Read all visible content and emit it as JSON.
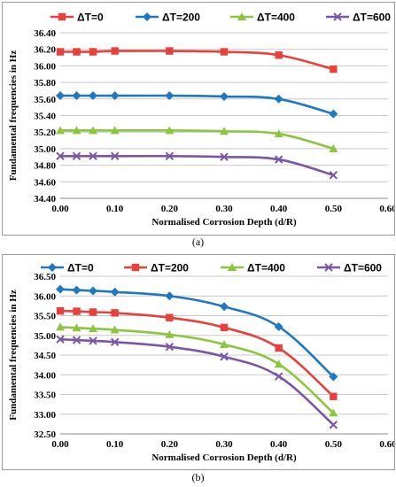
{
  "chart_data": [
    {
      "type": "line",
      "caption": "(a)",
      "xlabel": "Normalised Corrosion Depth (d/R)",
      "ylabel": "Fundamental frequencies in Hz",
      "xlim": [
        0,
        0.6
      ],
      "ylim": [
        34.4,
        36.4
      ],
      "xticks": [
        "0.00",
        "0.10",
        "0.20",
        "0.30",
        "0.40",
        "0.50",
        "0.60"
      ],
      "yticks": [
        "34.40",
        "34.60",
        "34.80",
        "35.00",
        "35.20",
        "35.40",
        "35.60",
        "35.80",
        "36.00",
        "36.20",
        "36.40"
      ],
      "grid": "horizontal",
      "legend": "top",
      "x": [
        0,
        0.03,
        0.06,
        0.1,
        0.2,
        0.3,
        0.4,
        0.5
      ],
      "series": [
        {
          "name": "ΔT=0",
          "color": "#e8403a",
          "marker": "square",
          "values": [
            36.17,
            36.17,
            36.17,
            36.18,
            36.18,
            36.17,
            36.13,
            35.96
          ]
        },
        {
          "name": "ΔT=200",
          "color": "#1f78c1",
          "marker": "diamond",
          "values": [
            35.64,
            35.64,
            35.64,
            35.64,
            35.64,
            35.63,
            35.6,
            35.42
          ]
        },
        {
          "name": "ΔT=400",
          "color": "#8cc63f",
          "marker": "triangle",
          "values": [
            35.22,
            35.22,
            35.22,
            35.22,
            35.22,
            35.21,
            35.18,
            35.0
          ]
        },
        {
          "name": "ΔT=600",
          "color": "#7a56a6",
          "marker": "x",
          "values": [
            34.91,
            34.91,
            34.91,
            34.91,
            34.91,
            34.9,
            34.87,
            34.68
          ]
        }
      ]
    },
    {
      "type": "line",
      "caption": "(b)",
      "xlabel": "Normalised Corrosion Depth (d/R)",
      "ylabel": "Fundamental frequencies in Hz",
      "xlim": [
        0,
        0.6
      ],
      "ylim": [
        32.5,
        36.5
      ],
      "xticks": [
        "0.00",
        "0.10",
        "0.20",
        "0.30",
        "0.40",
        "0.50",
        "0.60"
      ],
      "yticks": [
        "32.50",
        "33.00",
        "33.50",
        "34.00",
        "34.50",
        "35.00",
        "35.50",
        "36.00",
        "36.50"
      ],
      "grid": "horizontal",
      "legend": "top",
      "x": [
        0,
        0.03,
        0.06,
        0.1,
        0.2,
        0.3,
        0.4,
        0.5
      ],
      "series": [
        {
          "name": "ΔT=0",
          "color": "#1f78c1",
          "marker": "diamond",
          "values": [
            36.17,
            36.15,
            36.13,
            36.1,
            36.0,
            35.73,
            35.22,
            33.95
          ]
        },
        {
          "name": "ΔT=200",
          "color": "#e8403a",
          "marker": "square",
          "values": [
            35.62,
            35.61,
            35.59,
            35.57,
            35.45,
            35.2,
            34.68,
            33.45
          ]
        },
        {
          "name": "ΔT=400",
          "color": "#8cc63f",
          "marker": "triangle",
          "values": [
            35.21,
            35.19,
            35.17,
            35.14,
            35.02,
            34.77,
            34.27,
            33.03
          ]
        },
        {
          "name": "ΔT=600",
          "color": "#7a56a6",
          "marker": "x",
          "values": [
            34.9,
            34.88,
            34.86,
            34.83,
            34.71,
            34.46,
            33.96,
            32.73
          ]
        }
      ]
    }
  ]
}
